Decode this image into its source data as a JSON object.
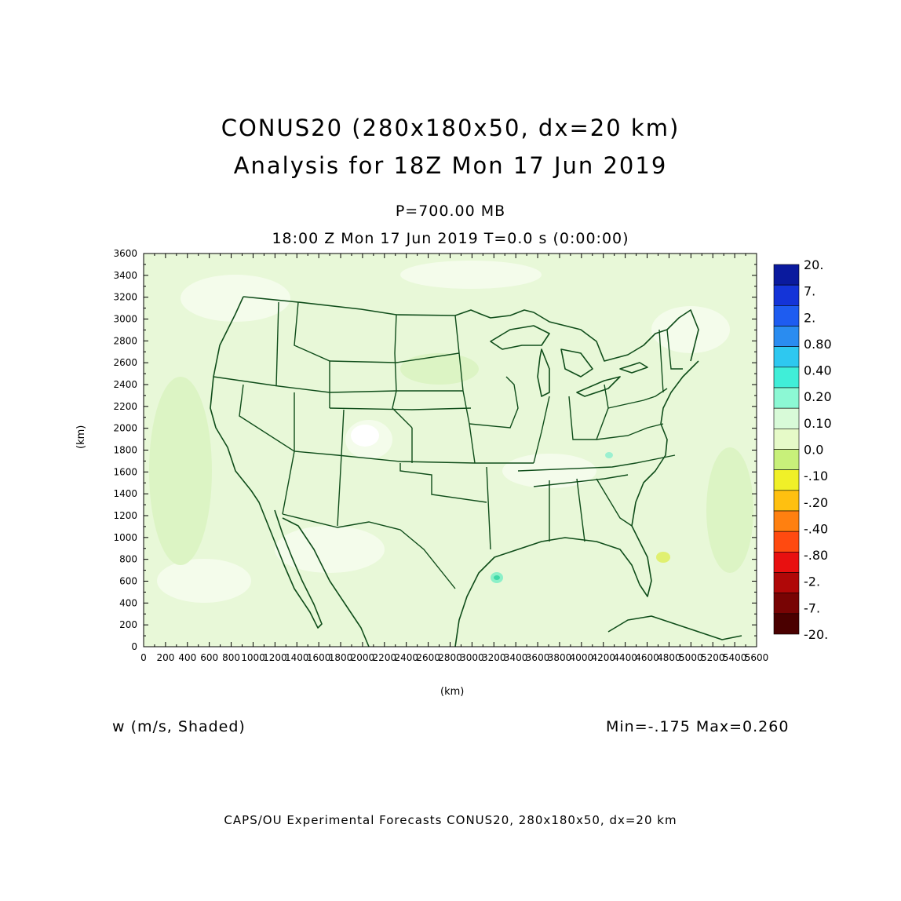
{
  "title": {
    "line1": "CONUS20 (280x180x50, dx=20 km)",
    "line2": "Analysis for 18Z Mon 17 Jun 2019"
  },
  "level": "P=700.00 MB",
  "valid_time": "18:00 Z Mon 17 Jun 2019    T=0.0 s (0:00:00)",
  "field_label": "w (m/s, Shaded)",
  "min_max": "Min=-.175  Max=0.260",
  "footer": "CAPS/OU Experimental Forecasts  CONUS20, 280x180x50, dx=20 km",
  "axes": {
    "xlabel": "(km)",
    "ylabel": "(km)",
    "x_ticks": [
      "0",
      "200",
      "400",
      "600",
      "800",
      "1000",
      "1200",
      "1400",
      "1600",
      "1800",
      "2000",
      "2200",
      "2400",
      "2600",
      "2800",
      "3000",
      "3200",
      "3400",
      "3600",
      "3800",
      "4000",
      "4200",
      "4400",
      "4600",
      "4800",
      "5000",
      "5200",
      "5400",
      "5600"
    ],
    "y_ticks": [
      "0",
      "200",
      "400",
      "600",
      "800",
      "1000",
      "1200",
      "1400",
      "1600",
      "1800",
      "2000",
      "2200",
      "2400",
      "2600",
      "2800",
      "3000",
      "3200",
      "3400",
      "3600"
    ],
    "xlim": [
      0,
      5600
    ],
    "ylim": [
      0,
      3600
    ]
  },
  "colorbar": {
    "labels": [
      "20.",
      "7.",
      "2.",
      "0.80",
      "0.40",
      "0.20",
      "0.10",
      "0.0",
      "-.10",
      "-.20",
      "-.40",
      "-.80",
      "-2.",
      "-7.",
      "-20."
    ],
    "colors": [
      "#0a1a9e",
      "#1434d8",
      "#1e5cf0",
      "#2a8cf0",
      "#2ec8f0",
      "#40eed8",
      "#8cf8d4",
      "#d8fad8",
      "#e6fac8",
      "#c8f07a",
      "#f0f028",
      "#ffc010",
      "#ff8010",
      "#ff4a10",
      "#e81010",
      "#b00808",
      "#780404",
      "#4a0000"
    ]
  },
  "map": {
    "base_color": "#e8f8d8",
    "outline_color": "#0f4d1a"
  }
}
